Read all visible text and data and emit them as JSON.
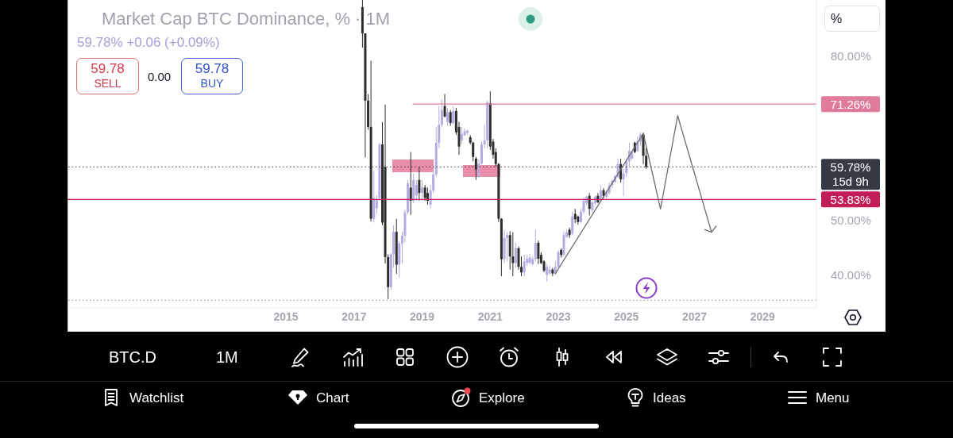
{
  "chart_data": {
    "type": "candlestick",
    "title": "Market Cap BTC Dominance, % · 1M",
    "subtitle": "59.78% +0.06 (+0.09%)",
    "xlim": [
      "2008-08",
      "2030-08"
    ],
    "xticks": [
      "2015",
      "2017",
      "2019",
      "2021",
      "2023",
      "2025",
      "2027",
      "2029"
    ],
    "ylim": [
      34,
      90.3
    ],
    "yticks": [
      {
        "value": 80,
        "label": "80.00%"
      },
      {
        "value": 50,
        "label": "50.00%"
      },
      {
        "value": 40,
        "label": "40.00%"
      }
    ],
    "series": [
      {
        "x": [
          "2017-04",
          "2017-05",
          "2017-06",
          "2017-07",
          "2017-08",
          "2017-09",
          "2017-10",
          "2017-11",
          "2017-12",
          "2018-01",
          "2018-02",
          "2018-03",
          "2018-04",
          "2018-05",
          "2018-06",
          "2018-07",
          "2018-08",
          "2018-09",
          "2018-10",
          "2018-11",
          "2018-12",
          "2019-01",
          "2019-02",
          "2019-03",
          "2019-04",
          "2019-05",
          "2019-06",
          "2019-07",
          "2019-08",
          "2019-09",
          "2019-10",
          "2019-11",
          "2019-12",
          "2020-01",
          "2020-02",
          "2020-03",
          "2020-04",
          "2020-05",
          "2020-06",
          "2020-07",
          "2020-08",
          "2020-09",
          "2020-10",
          "2020-11",
          "2020-12",
          "2021-01",
          "2021-02",
          "2021-03",
          "2021-04",
          "2021-05",
          "2021-06",
          "2021-07",
          "2021-08",
          "2021-09",
          "2021-10",
          "2021-11",
          "2021-12",
          "2022-01",
          "2022-02",
          "2022-03",
          "2022-04",
          "2022-05",
          "2022-06",
          "2022-07",
          "2022-08",
          "2022-09",
          "2022-10",
          "2022-11",
          "2022-12",
          "2023-01",
          "2023-02",
          "2023-03",
          "2023-04",
          "2023-05",
          "2023-06",
          "2023-07",
          "2023-08",
          "2023-09",
          "2023-10",
          "2023-11",
          "2023-12",
          "2024-01",
          "2024-02",
          "2024-03",
          "2024-04",
          "2024-05",
          "2024-06",
          "2024-07",
          "2024-08",
          "2024-09",
          "2024-10",
          "2024-11",
          "2024-12",
          "2025-01",
          "2025-02",
          "2025-03",
          "2025-04",
          "2025-05",
          "2025-06",
          "2025-07",
          "2025-08"
        ],
        "ohlc": [
          [
            89,
            90.3,
            81.6,
            84.2
          ],
          [
            84.2,
            84.2,
            61.5,
            71.9
          ],
          [
            71.9,
            73.1,
            66.6,
            67.1
          ],
          [
            67.1,
            79.2,
            49.8,
            50.3
          ],
          [
            50.3,
            59.1,
            49.6,
            54.1
          ],
          [
            52.2,
            54.6,
            51.2,
            53.9
          ],
          [
            54.1,
            64.2,
            53.6,
            63.9
          ],
          [
            63.9,
            68.0,
            49.1,
            49.6
          ],
          [
            59.8,
            71.2,
            42.1,
            43.3
          ],
          [
            43.3,
            43.8,
            35.6,
            37.8
          ],
          [
            37.8,
            44.0,
            37.3,
            43.8
          ],
          [
            43.8,
            49.1,
            41.4,
            47.9
          ],
          [
            47.9,
            50.3,
            40.2,
            41.9
          ],
          [
            41.9,
            46.2,
            39.5,
            45.8
          ],
          [
            45.8,
            47.9,
            42.1,
            47.2
          ],
          [
            47.2,
            51.9,
            46.0,
            51.5
          ],
          [
            51.5,
            57.4,
            51.2,
            56.8
          ],
          [
            56.0,
            62.5,
            51.0,
            53.6
          ],
          [
            53.6,
            58.6,
            53.1,
            57.4
          ],
          [
            54.6,
            57.4,
            53.6,
            56.5
          ],
          [
            57.4,
            59.8,
            53.6,
            55.0
          ],
          [
            55.0,
            57.4,
            53.6,
            56.0
          ],
          [
            56.0,
            56.5,
            53.6,
            54.1
          ],
          [
            55.0,
            56.0,
            52.9,
            53.6
          ],
          [
            52.9,
            56.5,
            52.2,
            55.5
          ],
          [
            55.5,
            59.1,
            55.0,
            58.4
          ],
          [
            58.4,
            67.1,
            57.9,
            64.2
          ],
          [
            64.2,
            70.9,
            63.2,
            67.5
          ],
          [
            67.5,
            72.2,
            67.0,
            70.2
          ],
          [
            70.9,
            73.1,
            68.8,
            69.0
          ],
          [
            68.0,
            70.5,
            67.3,
            69.8
          ],
          [
            69.8,
            70.2,
            67.3,
            67.8
          ],
          [
            67.8,
            70.9,
            67.5,
            70.0
          ],
          [
            70.0,
            70.6,
            65.6,
            66.1
          ],
          [
            67.1,
            68.0,
            62.0,
            63.5
          ],
          [
            64.6,
            67.1,
            64.0,
            65.8
          ],
          [
            65.6,
            66.8,
            65.4,
            66.3
          ],
          [
            66.0,
            66.6,
            65.6,
            66.4
          ],
          [
            65.2,
            65.6,
            63.9,
            64.2
          ],
          [
            64.2,
            64.4,
            60.8,
            61.6
          ],
          [
            61.3,
            61.6,
            57.4,
            59.3
          ],
          [
            58.0,
            61.1,
            57.8,
            60.4
          ],
          [
            60.4,
            64.4,
            60.2,
            63.9
          ],
          [
            63.9,
            67.5,
            63.2,
            64.6
          ],
          [
            64.6,
            71.9,
            63.2,
            71.6
          ],
          [
            71.4,
            73.6,
            62.9,
            63.5
          ],
          [
            64.4,
            64.9,
            61.3,
            62.0
          ],
          [
            62.5,
            63.2,
            59.8,
            60.3
          ],
          [
            60.3,
            60.5,
            49.7,
            50.3
          ],
          [
            50.3,
            50.4,
            39.8,
            42.9
          ],
          [
            42.9,
            48.3,
            42.2,
            46.8
          ],
          [
            46.8,
            47.8,
            42.5,
            47.3
          ],
          [
            47.3,
            48.0,
            41.0,
            43.4
          ],
          [
            43.4,
            47.8,
            39.8,
            42.2
          ],
          [
            42.2,
            45.9,
            41.3,
            44.9
          ],
          [
            44.9,
            45.2,
            41.0,
            41.5
          ],
          [
            41.5,
            43.4,
            39.8,
            40.5
          ],
          [
            40.5,
            43.7,
            39.8,
            42.5
          ],
          [
            42.2,
            43.7,
            41.7,
            43.0
          ],
          [
            42.3,
            43.9,
            42.0,
            43.2
          ],
          [
            42.0,
            43.4,
            41.8,
            42.9
          ],
          [
            42.9,
            48.3,
            42.5,
            45.9
          ],
          [
            45.9,
            46.3,
            42.0,
            43.0
          ],
          [
            43.7,
            44.2,
            42.0,
            42.2
          ],
          [
            42.5,
            42.7,
            40.5,
            40.8
          ],
          [
            40.0,
            42.0,
            38.8,
            41.5
          ],
          [
            40.3,
            41.7,
            40.0,
            41.0
          ],
          [
            41.0,
            41.3,
            39.8,
            40.3
          ],
          [
            40.3,
            42.5,
            40.0,
            41.5
          ],
          [
            41.5,
            44.6,
            41.3,
            44.2
          ],
          [
            44.6,
            44.9,
            43.2,
            43.7
          ],
          [
            43.7,
            48.0,
            43.4,
            47.3
          ],
          [
            47.0,
            48.3,
            46.8,
            47.8
          ],
          [
            48.3,
            48.7,
            46.8,
            47.3
          ],
          [
            47.6,
            51.6,
            47.3,
            50.7
          ],
          [
            51.2,
            52.1,
            49.5,
            50.2
          ],
          [
            50.7,
            50.9,
            49.2,
            49.7
          ],
          [
            49.7,
            52.1,
            49.5,
            51.6
          ],
          [
            51.6,
            54.3,
            51.2,
            53.6
          ],
          [
            53.1,
            54.5,
            52.8,
            54.3
          ],
          [
            54.5,
            55.0,
            50.9,
            52.1
          ],
          [
            51.9,
            53.6,
            51.4,
            53.3
          ],
          [
            53.1,
            54.5,
            52.8,
            54.3
          ],
          [
            54.5,
            55.0,
            53.1,
            53.3
          ],
          [
            53.6,
            56.4,
            53.3,
            55.5
          ],
          [
            55.5,
            55.9,
            54.0,
            54.5
          ],
          [
            54.3,
            55.5,
            54.0,
            55.2
          ],
          [
            55.0,
            56.9,
            54.8,
            56.4
          ],
          [
            56.4,
            57.5,
            55.9,
            57.2
          ],
          [
            57.0,
            58.4,
            56.9,
            58.1
          ],
          [
            57.9,
            61.3,
            57.7,
            60.3
          ],
          [
            60.3,
            61.3,
            56.9,
            57.5
          ],
          [
            57.5,
            59.4,
            54.5,
            58.6
          ],
          [
            58.6,
            61.3,
            57.9,
            60.8
          ],
          [
            60.8,
            64.2,
            59.9,
            62.7
          ],
          [
            61.3,
            62.7,
            61.1,
            62.5
          ],
          [
            64.2,
            64.4,
            62.3,
            62.5
          ],
          [
            62.7,
            65.4,
            62.5,
            64.4
          ],
          [
            64.4,
            66.1,
            63.7,
            65.7
          ],
          [
            65.7,
            65.9,
            60.3,
            61.8
          ],
          [
            61.8,
            63.2,
            59.4,
            59.78
          ]
        ],
        "colors": [
          "#2e2e2e",
          "#2e2e2e",
          "#2e2e2e",
          "#2e2e2e",
          "#b5abe2",
          "#b5abe2",
          "#b5abe2",
          "#2e2e2e",
          "#2e2e2e",
          "#2e2e2e",
          "#b5abe2",
          "#b5abe2",
          "#2e2e2e",
          "#b5abe2",
          "#b5abe2",
          "#b5abe2",
          "#b5abe2",
          "#2e2e2e",
          "#b5abe2",
          "#b5abe2",
          "#2e2e2e",
          "#b5abe2",
          "#2e2e2e",
          "#2e2e2e",
          "#b5abe2",
          "#b5abe2",
          "#b5abe2",
          "#b5abe2",
          "#b5abe2",
          "#2e2e2e",
          "#b5abe2",
          "#2e2e2e",
          "#b5abe2",
          "#2e2e2e",
          "#2e2e2e",
          "#b5abe2",
          "#b5abe2",
          "#b5abe2",
          "#2e2e2e",
          "#2e2e2e",
          "#2e2e2e",
          "#b5abe2",
          "#b5abe2",
          "#b5abe2",
          "#b5abe2",
          "#2e2e2e",
          "#2e2e2e",
          "#2e2e2e",
          "#2e2e2e",
          "#2e2e2e",
          "#b5abe2",
          "#b5abe2",
          "#2e2e2e",
          "#2e2e2e",
          "#b5abe2",
          "#2e2e2e",
          "#2e2e2e",
          "#b5abe2",
          "#b5abe2",
          "#b5abe2",
          "#b5abe2",
          "#b5abe2",
          "#2e2e2e",
          "#2e2e2e",
          "#2e2e2e",
          "#b5abe2",
          "#b5abe2",
          "#2e2e2e",
          "#b5abe2",
          "#b5abe2",
          "#2e2e2e",
          "#b5abe2",
          "#b5abe2",
          "#2e2e2e",
          "#b5abe2",
          "#2e2e2e",
          "#2e2e2e",
          "#b5abe2",
          "#b5abe2",
          "#b5abe2",
          "#2e2e2e",
          "#b5abe2",
          "#b5abe2",
          "#2e2e2e",
          "#b5abe2",
          "#2e2e2e",
          "#b5abe2",
          "#b5abe2",
          "#b5abe2",
          "#b5abe2",
          "#b5abe2",
          "#2e2e2e",
          "#b5abe2",
          "#b5abe2",
          "#b5abe2",
          "#b5abe2",
          "#2e2e2e",
          "#b5abe2",
          "#b5abe2",
          "#2e2e2e",
          "#2e2e2e"
        ]
      },
      {
        "type": "line",
        "color": "#e07c9a",
        "x": [
          "2018-09-25",
          "2030-08"
        ],
        "values": [
          71.26,
          71.26
        ],
        "value_labels": [
          null,
          "71.26%"
        ]
      },
      {
        "type": "line",
        "color": "#6e6e6e",
        "x": [
          "2022-12",
          "2025-07"
        ],
        "values": [
          40.3,
          65.9
        ]
      }
    ],
    "ref_lines": [
      {
        "axis": "y",
        "value": 59.78,
        "label": "59.78%",
        "color": "#363a45",
        "line_style": "dotted"
      },
      {
        "axis": "y",
        "value": 53.83,
        "label": "53.83%",
        "color": "#c21d58"
      },
      {
        "axis": "y",
        "value": 35.4,
        "color": "#8a8a8a",
        "line_style": "dotted"
      }
    ],
    "annotations": [
      "59.78",
      "SELL",
      "0.00",
      "59.78",
      "BUY",
      "%",
      "BTC.D",
      "1M",
      "Watchlist",
      "Chart",
      "Explore",
      "Ideas",
      "Menu",
      "15d 9h"
    ]
  }
}
